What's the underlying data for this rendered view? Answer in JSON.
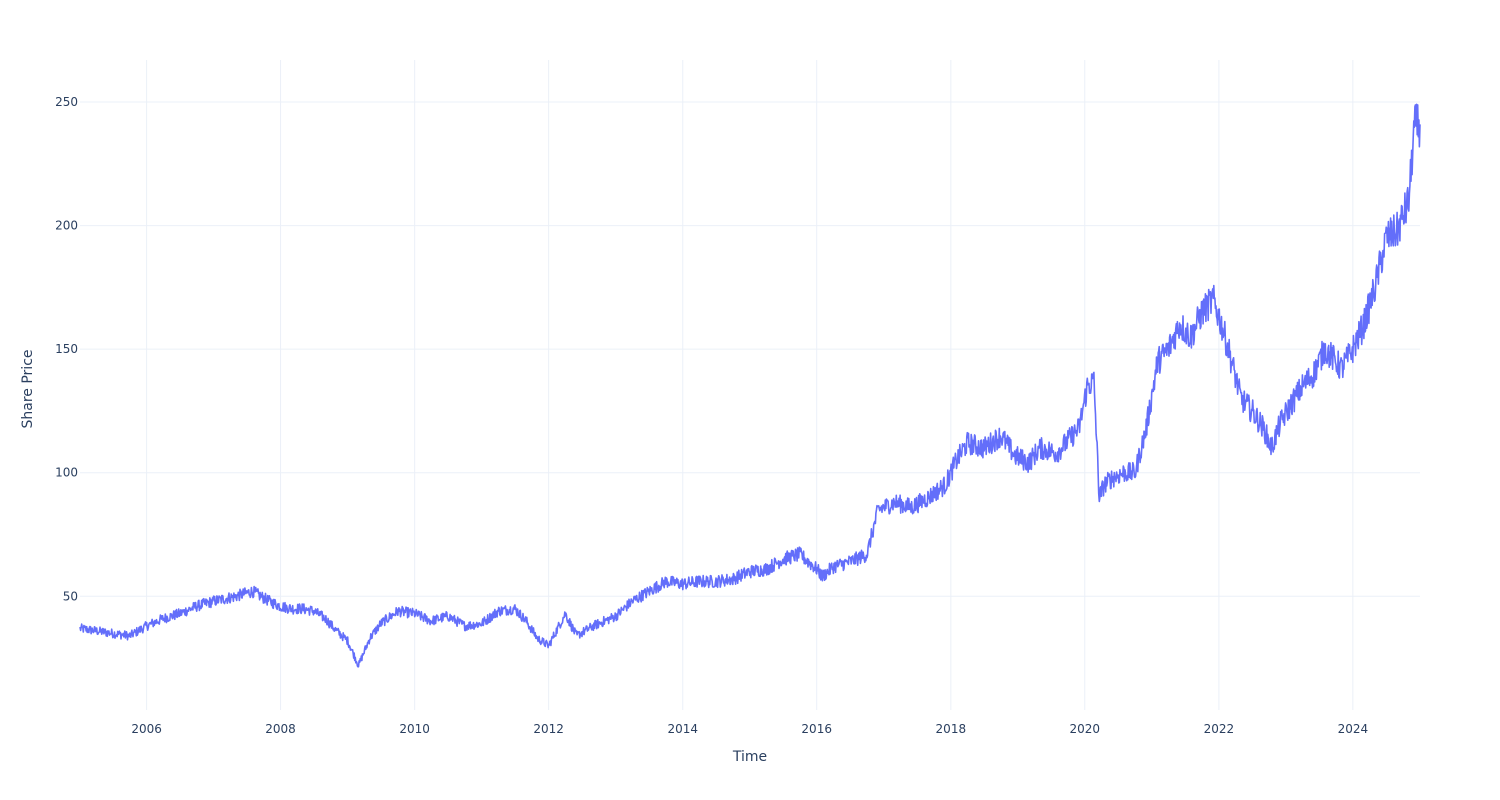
{
  "chart_data": {
    "type": "line",
    "title": "",
    "xlabel": "Time",
    "ylabel": "Share Price",
    "x_ticks": [
      "2006",
      "2008",
      "2010",
      "2012",
      "2014",
      "2016",
      "2018",
      "2020",
      "2022",
      "2024"
    ],
    "y_ticks": [
      50,
      100,
      150,
      200,
      250
    ],
    "xlim": [
      "2005-01-03",
      "2025-01-01"
    ],
    "ylim": [
      4,
      267
    ],
    "grid": true,
    "legend": "none",
    "colors": {
      "series": "#636efa",
      "grid": "#ebf0f8",
      "text": "#2a3f5f"
    },
    "series": [
      {
        "x": [
          "2005-01-03",
          "2005-04-01",
          "2005-07-01",
          "2005-10-01",
          "2006-01-01",
          "2006-04-01",
          "2006-07-01",
          "2006-10-01",
          "2007-01-01",
          "2007-05-01",
          "2007-08-01",
          "2007-11-01",
          "2008-01-01",
          "2008-03-01",
          "2008-05-01",
          "2008-07-01",
          "2008-09-01",
          "2008-11-01",
          "2009-01-01",
          "2009-03-01",
          "2009-05-01",
          "2009-07-01",
          "2009-10-01",
          "2010-01-01",
          "2010-04-01",
          "2010-07-01",
          "2010-10-01",
          "2011-01-01",
          "2011-04-01",
          "2011-07-01",
          "2011-09-01",
          "2011-11-01",
          "2012-01-01",
          "2012-04-01",
          "2012-06-01",
          "2012-09-01",
          "2013-01-01",
          "2013-04-01",
          "2013-07-01",
          "2013-10-01",
          "2014-01-01",
          "2014-04-01",
          "2014-07-01",
          "2014-10-01",
          "2015-01-01",
          "2015-04-01",
          "2015-07-01",
          "2015-10-01",
          "2016-01-01",
          "2016-02-01",
          "2016-04-01",
          "2016-07-01",
          "2016-10-01",
          "2016-12-01",
          "2017-03-01",
          "2017-06-01",
          "2017-09-01",
          "2017-12-01",
          "2018-02-01",
          "2018-04-01",
          "2018-07-01",
          "2018-10-01",
          "2018-12-15",
          "2019-03-01",
          "2019-05-01",
          "2019-08-01",
          "2019-10-01",
          "2019-12-01",
          "2020-01-15",
          "2020-02-20",
          "2020-03-20",
          "2020-04-15",
          "2020-06-01",
          "2020-08-01",
          "2020-10-01",
          "2020-12-01",
          "2021-02-01",
          "2021-04-01",
          "2021-06-01",
          "2021-08-01",
          "2021-10-01",
          "2021-12-01",
          "2022-01-15",
          "2022-03-01",
          "2022-05-01",
          "2022-07-01",
          "2022-09-01",
          "2022-10-15",
          "2022-12-01",
          "2023-02-01",
          "2023-04-01",
          "2023-06-01",
          "2023-08-01",
          "2023-10-01",
          "2023-11-01",
          "2024-01-01",
          "2024-03-01",
          "2024-05-01",
          "2024-07-01",
          "2024-09-01",
          "2024-11-01",
          "2024-12-01",
          "2025-01-01"
        ],
        "values": [
          37,
          36,
          35,
          34,
          38,
          41,
          43,
          46,
          48,
          50,
          52,
          48,
          46,
          45,
          45,
          44,
          41,
          36,
          32,
          22,
          33,
          39,
          44,
          43,
          40,
          42,
          38,
          39,
          44,
          45,
          40,
          33,
          30,
          43,
          34,
          38,
          42,
          48,
          52,
          56,
          55,
          56,
          56,
          57,
          60,
          61,
          65,
          67,
          61,
          58,
          62,
          64,
          67,
          85,
          88,
          86,
          90,
          95,
          105,
          112,
          110,
          115,
          107,
          104,
          110,
          108,
          113,
          118,
          135,
          137,
          90,
          95,
          98,
          100,
          100,
          118,
          145,
          150,
          160,
          155,
          165,
          170,
          160,
          148,
          130,
          125,
          118,
          110,
          120,
          128,
          135,
          140,
          150,
          145,
          142,
          150,
          160,
          175,
          195,
          198,
          210,
          240,
          241
        ]
      }
    ]
  }
}
